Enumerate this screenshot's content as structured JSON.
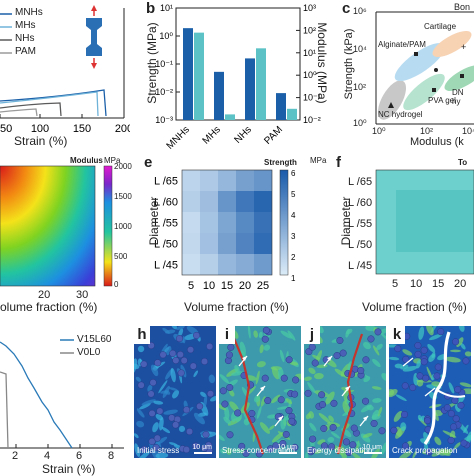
{
  "panel_a": {
    "legend": [
      "MNHs",
      "MHs",
      "NHs",
      "PAM"
    ],
    "legend_colors": [
      "#1a5fa8",
      "#6fb3d9",
      "#5a5a5a",
      "#9a9a9a"
    ],
    "xlabel": "Strain (%)",
    "xticks": [
      "50",
      "100",
      "150",
      "200"
    ],
    "x_tick_values": [
      50,
      100,
      150,
      200
    ]
  },
  "panel_b": {
    "letter": "b",
    "ylabel": "Strength (MPa)",
    "ylabel2": "Modulus (MPa)",
    "categories": [
      "MNHs",
      "MHs",
      "NHs",
      "PAM"
    ],
    "yticks": [
      "10¹",
      "10⁰",
      "10⁻¹",
      "10⁻²",
      "10⁻³"
    ],
    "yticks2": [
      "10³",
      "10²",
      "10¹",
      "10⁰",
      "10⁻¹",
      "10⁻²"
    ]
  },
  "panel_c": {
    "letter": "c",
    "ylabel": "Strength (kPa)",
    "xlabel": "Modulus (k",
    "yticks": [
      "10⁶",
      "10⁴",
      "10²",
      "10⁰"
    ],
    "xticks": [
      "10⁰",
      "10²",
      "10⁴"
    ],
    "labels": [
      "Cartilage",
      "Alginate/PAM",
      "PVA gel",
      "DN hy",
      "NC hydrogel",
      "Bon"
    ]
  },
  "panel_d": {
    "title": "Modulus",
    "unit": "MPa",
    "colorbar_ticks": [
      "2000",
      "1500",
      "1000",
      "500",
      "0"
    ],
    "xlabel": "olume fraction (%)",
    "xticks": [
      "20",
      "30"
    ]
  },
  "panel_e": {
    "letter": "e",
    "title": "Strength",
    "unit": "MPa",
    "ylabel": "Diameter",
    "xlabel": "Volume fraction (%)",
    "rows": [
      "L /65",
      "L /60",
      "L /55",
      "L /50",
      "L /45"
    ],
    "cols": [
      "5",
      "10",
      "15",
      "20",
      "25"
    ],
    "colorbar_ticks": [
      "6",
      "5",
      "4",
      "3",
      "2",
      "1"
    ],
    "values": [
      [
        1.8,
        2.2,
        2.8,
        3.6,
        4.0
      ],
      [
        2.0,
        2.6,
        4.0,
        5.0,
        5.6
      ],
      [
        1.6,
        2.4,
        3.4,
        4.4,
        5.2
      ],
      [
        1.7,
        2.5,
        3.6,
        4.6,
        5.4
      ],
      [
        1.5,
        2.0,
        2.8,
        3.2,
        3.8
      ]
    ]
  },
  "panel_f": {
    "letter": "f",
    "title": "To",
    "ylabel": "Diameter",
    "rows": [
      "L /65",
      "L /60",
      "L /55",
      "L /50",
      "L /45"
    ],
    "xticks": [
      "5",
      "10",
      "15",
      "20"
    ],
    "xlabel": "Volume fraction (%)"
  },
  "panel_g": {
    "legend": [
      "V15L60",
      "V0L0"
    ],
    "legend_colors": [
      "#2a7ab8",
      "#888888"
    ],
    "xlabel": "Strain (%)",
    "xticks": [
      "2",
      "4",
      "6",
      "8"
    ]
  },
  "panel_h": {
    "letter": "h",
    "caption": "Initial stress",
    "scale": "10 μm"
  },
  "panel_i": {
    "letter": "i",
    "caption": "Stress concentration",
    "scale": "10 μm"
  },
  "panel_j": {
    "letter": "j",
    "caption": "Energy dissipation",
    "scale": "10 μm"
  },
  "panel_k": {
    "letter": "k",
    "caption": "Crack propagation"
  }
}
